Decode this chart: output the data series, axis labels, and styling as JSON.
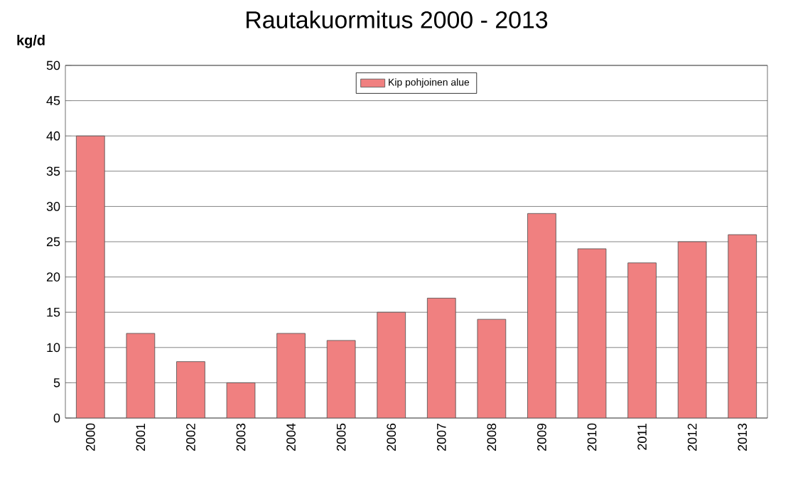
{
  "chart_data": {
    "type": "bar",
    "title": "Rautakuormitus  2000 - 2013",
    "ylabel": "kg/d",
    "categories": [
      "2000",
      "2001",
      "2002",
      "2003",
      "2004",
      "2005",
      "2006",
      "2007",
      "2008",
      "2009",
      "2010",
      "2011",
      "2012",
      "2013"
    ],
    "series": [
      {
        "name": "Kip pohjoinen alue",
        "color": "#f08080",
        "values": [
          40,
          12,
          8,
          5,
          12,
          11,
          15,
          17,
          14,
          29,
          24,
          22,
          25,
          26
        ]
      }
    ],
    "ylim": [
      0,
      50
    ],
    "yticks": [
      0,
      5,
      10,
      15,
      20,
      25,
      30,
      35,
      40,
      45,
      50
    ],
    "grid": "y",
    "legend": "top"
  }
}
